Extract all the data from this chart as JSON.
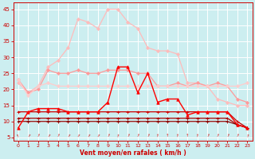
{
  "xlabel": "Vent moyen/en rafales ( km/h )",
  "xlim": [
    -0.5,
    23.5
  ],
  "ylim": [
    4,
    47
  ],
  "yticks": [
    5,
    10,
    15,
    20,
    25,
    30,
    35,
    40,
    45
  ],
  "xticks": [
    0,
    1,
    2,
    3,
    4,
    5,
    6,
    7,
    8,
    9,
    10,
    11,
    12,
    13,
    14,
    15,
    16,
    17,
    18,
    19,
    20,
    21,
    22,
    23
  ],
  "bg_color": "#cceef0",
  "grid_color": "#ffffff",
  "tick_color": "#cc0000",
  "label_color": "#cc0000",
  "lines": [
    {
      "y": [
        22,
        19,
        21,
        27,
        29,
        33,
        42,
        41,
        39,
        45,
        45,
        41,
        39,
        33,
        32,
        32,
        31,
        22,
        22,
        21,
        17,
        16,
        15,
        15
      ],
      "color": "#ffbbbb",
      "marker": "D",
      "markersize": 2,
      "linewidth": 0.9,
      "zorder": 2
    },
    {
      "y": [
        23,
        19,
        20,
        26,
        25,
        25,
        26,
        25,
        25,
        26,
        26,
        26,
        25,
        25,
        21,
        21,
        22,
        21,
        22,
        21,
        22,
        21,
        17,
        16
      ],
      "color": "#ff9999",
      "marker": "D",
      "markersize": 2,
      "linewidth": 0.9,
      "zorder": 2
    },
    {
      "y": [
        23,
        18,
        21,
        22,
        21,
        21,
        21,
        21,
        21,
        21,
        21,
        21,
        21,
        21,
        21,
        21,
        21,
        21,
        21,
        21,
        21,
        21,
        21,
        22
      ],
      "color": "#ffcccc",
      "marker": "D",
      "markersize": 2,
      "linewidth": 0.9,
      "zorder": 2
    },
    {
      "y": [
        8,
        13,
        14,
        14,
        14,
        13,
        13,
        13,
        13,
        16,
        27,
        27,
        19,
        25,
        16,
        17,
        17,
        12,
        13,
        13,
        13,
        13,
        9,
        8
      ],
      "color": "#ff0000",
      "marker": "^",
      "markersize": 2.5,
      "linewidth": 1.0,
      "zorder": 4
    },
    {
      "y": [
        13,
        13,
        13,
        13,
        13,
        13,
        13,
        13,
        13,
        13,
        13,
        13,
        13,
        13,
        13,
        13,
        13,
        13,
        13,
        13,
        13,
        13,
        10,
        8
      ],
      "color": "#cc0000",
      "marker": "+",
      "markersize": 3,
      "linewidth": 0.9,
      "zorder": 3
    },
    {
      "y": [
        11,
        11,
        11,
        11,
        11,
        11,
        11,
        11,
        11,
        11,
        11,
        11,
        11,
        11,
        11,
        11,
        11,
        11,
        11,
        11,
        11,
        11,
        9,
        8
      ],
      "color": "#aa0000",
      "marker": "+",
      "markersize": 3,
      "linewidth": 0.9,
      "zorder": 3
    },
    {
      "y": [
        10,
        10,
        10,
        10,
        10,
        10,
        10,
        10,
        10,
        10,
        10,
        10,
        10,
        10,
        10,
        10,
        10,
        10,
        10,
        10,
        10,
        10,
        9,
        8
      ],
      "color": "#880000",
      "marker": "+",
      "markersize": 3,
      "linewidth": 0.9,
      "zorder": 3
    }
  ],
  "arrow_rotations": [
    20,
    -40,
    -30,
    -40,
    -30,
    -40,
    -40,
    -40,
    -40,
    -30,
    -20,
    -30,
    -30,
    -30,
    -10,
    0,
    -10,
    0,
    -10,
    -30,
    -30,
    -30,
    -30,
    -20
  ]
}
